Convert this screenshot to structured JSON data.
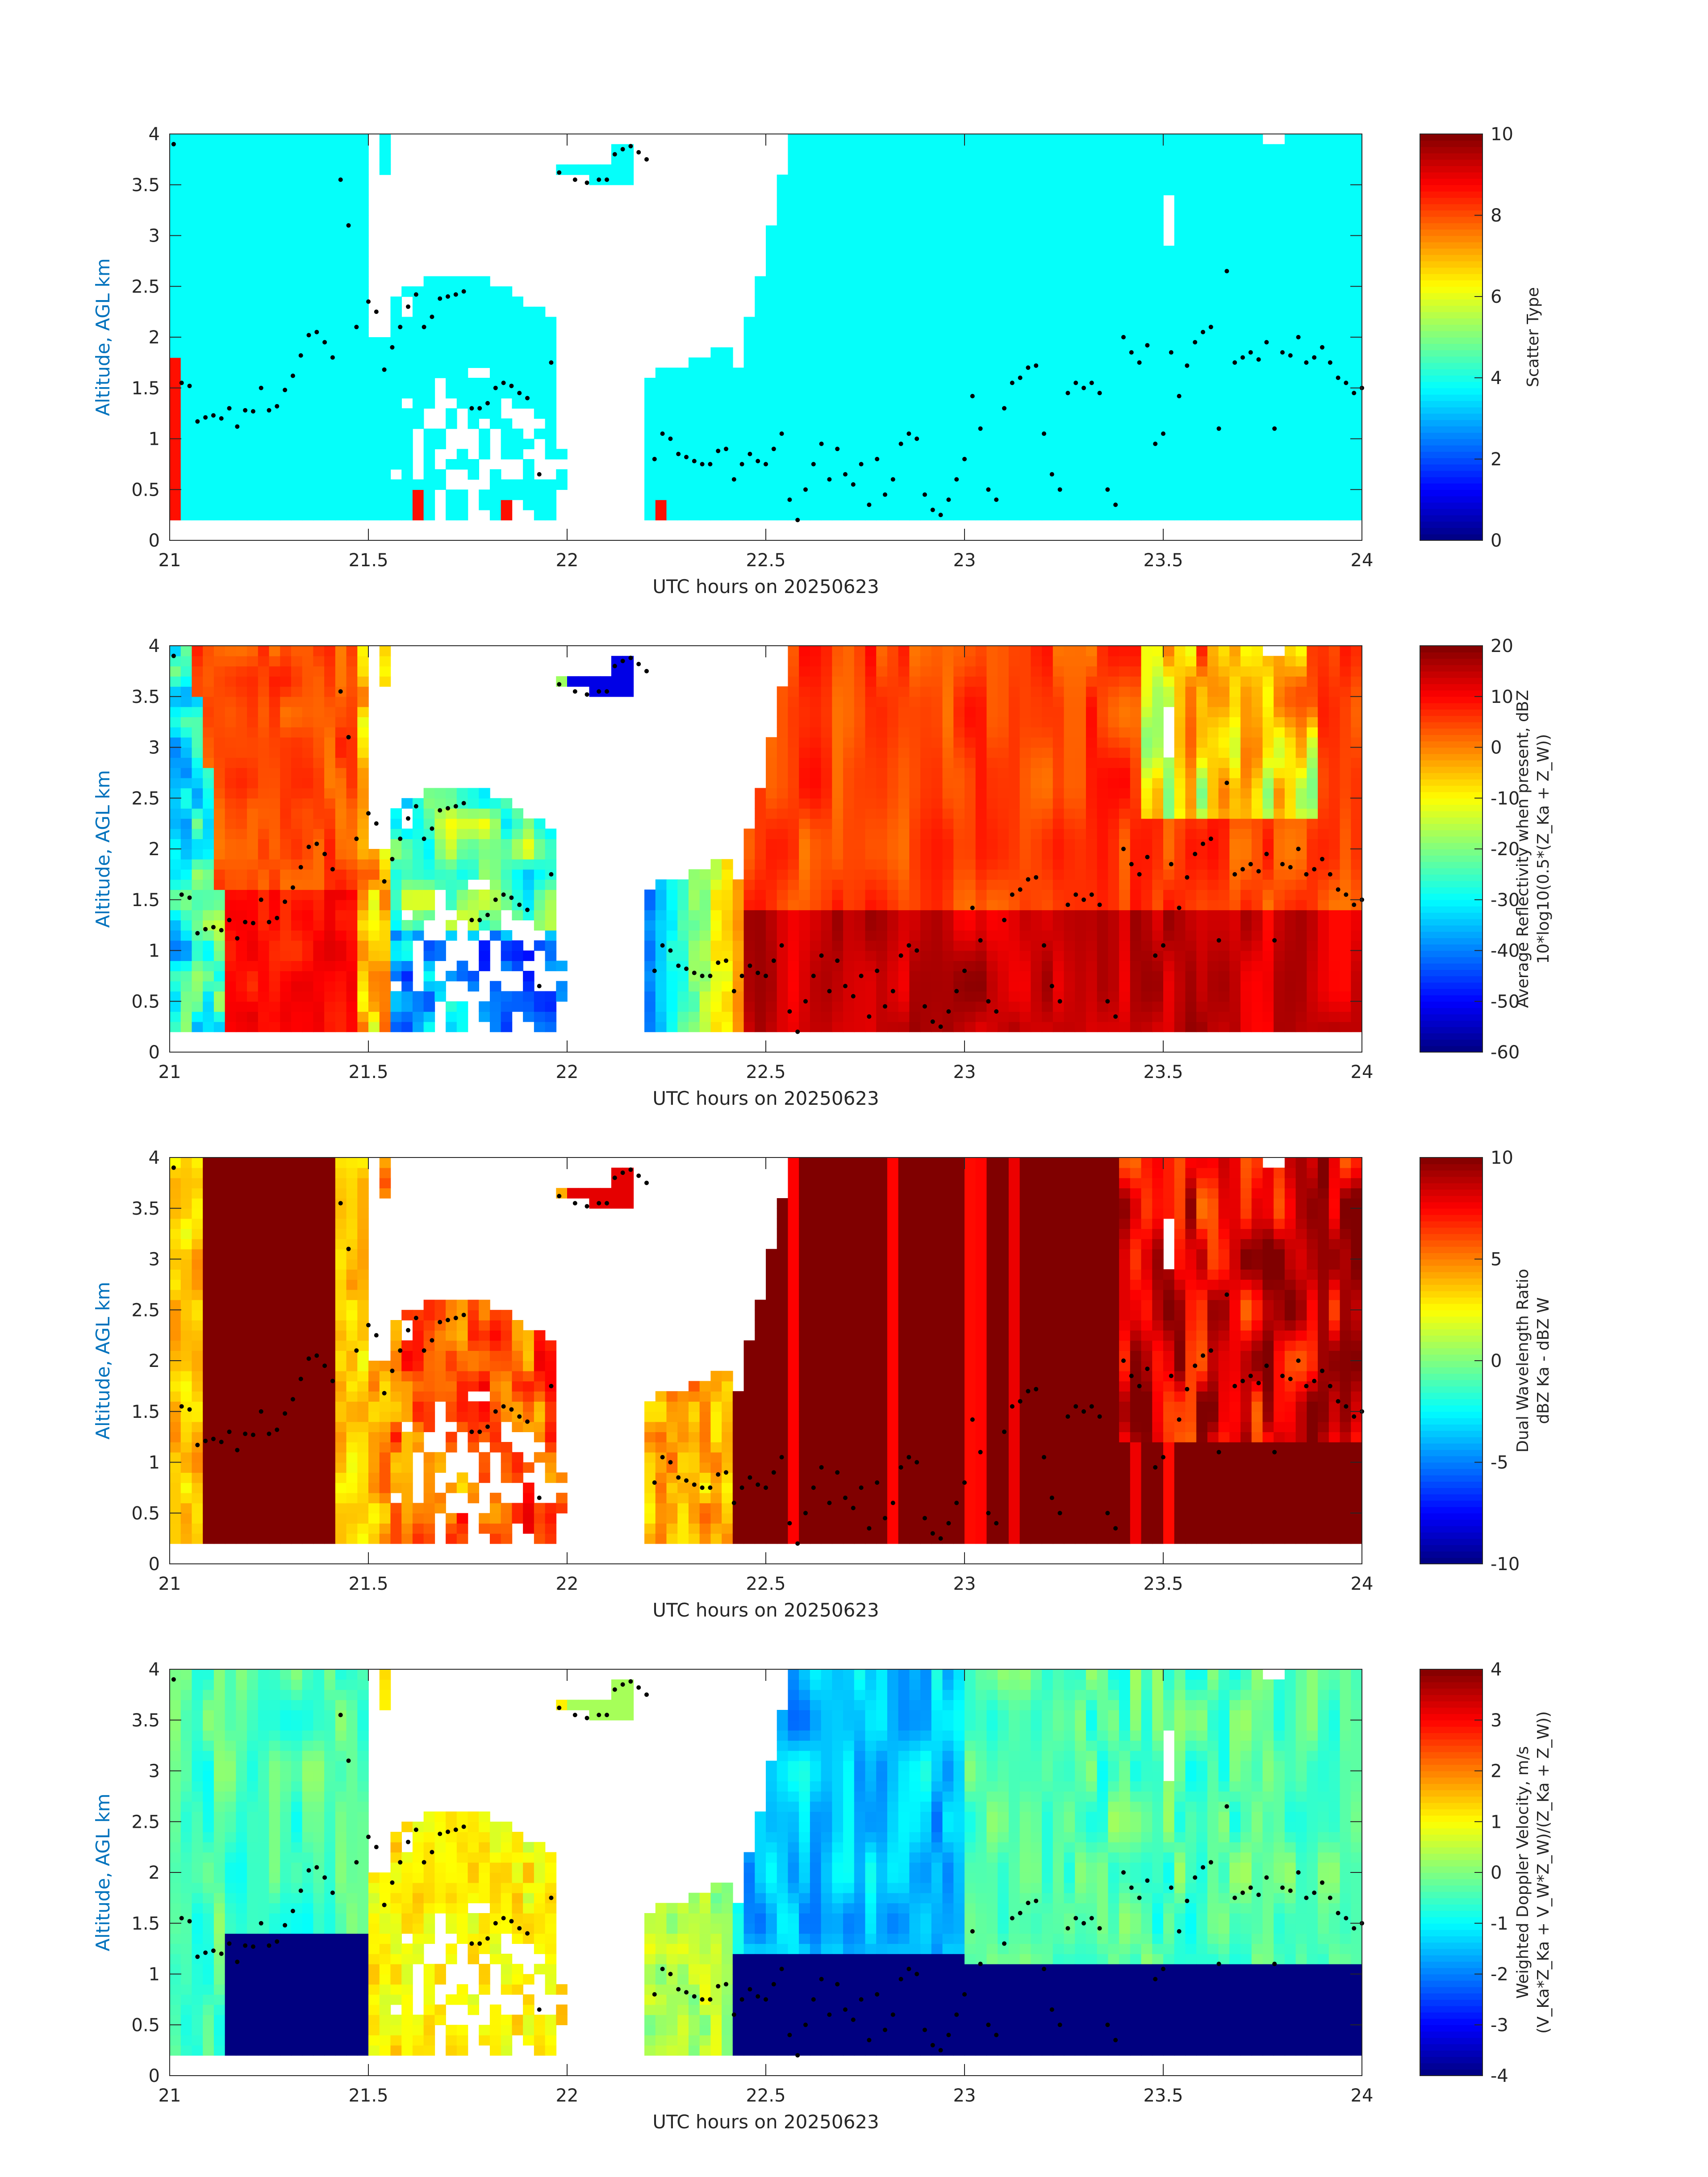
{
  "chart_data": [
    {
      "type": "heatmap",
      "panel": 1,
      "xlabel": "UTC hours on 20250623",
      "ylabel": "Altitude, AGL km",
      "xlim": [
        21,
        24
      ],
      "ylim": [
        0,
        4
      ],
      "xticks": [
        "21",
        "21.5",
        "22",
        "22.5",
        "23",
        "23.5",
        "24"
      ],
      "yticks": [
        "0",
        "0.5",
        "1",
        "1.5",
        "2",
        "2.5",
        "3",
        "3.5",
        "4"
      ],
      "colorbar": {
        "label_lines": [
          "Scatter Type"
        ],
        "range": [
          0,
          10
        ],
        "ticks": [
          "0",
          "2",
          "4",
          "6",
          "8",
          "10"
        ]
      },
      "field": "scatter-type",
      "values_note_dominant": 3.8,
      "values_note_secondary": 8.6
    },
    {
      "type": "heatmap",
      "panel": 2,
      "xlabel": "UTC hours on 20250623",
      "ylabel": "Altitude, AGL km",
      "xlim": [
        21,
        24
      ],
      "ylim": [
        0,
        4
      ],
      "xticks": [
        "21",
        "21.5",
        "22",
        "22.5",
        "23",
        "23.5",
        "24"
      ],
      "yticks": [
        "0",
        "0.5",
        "1",
        "1.5",
        "2",
        "2.5",
        "3",
        "3.5",
        "4"
      ],
      "colorbar": {
        "label_lines": [
          "Average Reflectivity when present, dBZ",
          "10*log10(0.5*(Z_Ka + Z_W))"
        ],
        "range": [
          -60,
          20
        ],
        "ticks": [
          "-60",
          "-50",
          "-40",
          "-30",
          "-20",
          "-10",
          "0",
          "10",
          "20"
        ]
      },
      "field": "reflectivity"
    },
    {
      "type": "heatmap",
      "panel": 3,
      "xlabel": "UTC hours on 20250623",
      "ylabel": "Altitude, AGL km",
      "xlim": [
        21,
        24
      ],
      "ylim": [
        0,
        4
      ],
      "xticks": [
        "21",
        "21.5",
        "22",
        "22.5",
        "23",
        "23.5",
        "24"
      ],
      "yticks": [
        "0",
        "0.5",
        "1",
        "1.5",
        "2",
        "2.5",
        "3",
        "3.5",
        "4"
      ],
      "colorbar": {
        "label_lines": [
          "Dual Wavelength Ratio",
          "dBZ Ka - dBZ W"
        ],
        "range": [
          -10,
          10
        ],
        "ticks": [
          "-10",
          "-5",
          "0",
          "5",
          "10"
        ]
      },
      "field": "dwr"
    },
    {
      "type": "heatmap",
      "panel": 4,
      "xlabel": "UTC hours on 20250623",
      "ylabel": "Altitude, AGL km",
      "xlim": [
        21,
        24
      ],
      "ylim": [
        0,
        4
      ],
      "xticks": [
        "21",
        "21.5",
        "22",
        "22.5",
        "23",
        "23.5",
        "24"
      ],
      "yticks": [
        "0",
        "0.5",
        "1",
        "1.5",
        "2",
        "2.5",
        "3",
        "3.5",
        "4"
      ],
      "colorbar": {
        "label_lines": [
          "Weighted Doppler Velocity, m/s",
          "(V_Ka*Z_Ka + V_W*Z_W)/(Z_Ka + Z_W))"
        ],
        "range": [
          -4,
          4
        ],
        "ticks": [
          "-4",
          "-3",
          "-2",
          "-1",
          "0",
          "1",
          "2",
          "3",
          "4"
        ]
      },
      "field": "velocity"
    }
  ],
  "cloud_base_points": [
    [
      21.01,
      3.9
    ],
    [
      21.03,
      1.55
    ],
    [
      21.05,
      1.52
    ],
    [
      21.07,
      1.17
    ],
    [
      21.09,
      1.21
    ],
    [
      21.11,
      1.23
    ],
    [
      21.13,
      1.2
    ],
    [
      21.15,
      1.3
    ],
    [
      21.17,
      1.12
    ],
    [
      21.19,
      1.28
    ],
    [
      21.21,
      1.27
    ],
    [
      21.23,
      1.5
    ],
    [
      21.25,
      1.28
    ],
    [
      21.27,
      1.32
    ],
    [
      21.29,
      1.48
    ],
    [
      21.31,
      1.62
    ],
    [
      21.33,
      1.82
    ],
    [
      21.35,
      2.02
    ],
    [
      21.37,
      2.05
    ],
    [
      21.39,
      1.95
    ],
    [
      21.41,
      1.8
    ],
    [
      21.43,
      3.55
    ],
    [
      21.45,
      3.1
    ],
    [
      21.47,
      2.1
    ],
    [
      21.5,
      2.35
    ],
    [
      21.52,
      2.25
    ],
    [
      21.54,
      1.68
    ],
    [
      21.56,
      1.9
    ],
    [
      21.58,
      2.1
    ],
    [
      21.6,
      2.3
    ],
    [
      21.62,
      2.42
    ],
    [
      21.64,
      2.1
    ],
    [
      21.66,
      2.2
    ],
    [
      21.68,
      2.38
    ],
    [
      21.7,
      2.4
    ],
    [
      21.72,
      2.42
    ],
    [
      21.74,
      2.45
    ],
    [
      21.76,
      1.3
    ],
    [
      21.78,
      1.3
    ],
    [
      21.8,
      1.35
    ],
    [
      21.82,
      1.5
    ],
    [
      21.84,
      1.55
    ],
    [
      21.86,
      1.52
    ],
    [
      21.88,
      1.45
    ],
    [
      21.9,
      1.4
    ],
    [
      21.93,
      0.65
    ],
    [
      21.96,
      1.75
    ],
    [
      21.98,
      3.62
    ],
    [
      22.02,
      3.55
    ],
    [
      22.05,
      3.52
    ],
    [
      22.08,
      3.55
    ],
    [
      22.1,
      3.55
    ],
    [
      22.12,
      3.8
    ],
    [
      22.14,
      3.85
    ],
    [
      22.16,
      3.88
    ],
    [
      22.18,
      3.82
    ],
    [
      22.2,
      3.75
    ],
    [
      22.22,
      0.8
    ],
    [
      22.24,
      1.05
    ],
    [
      22.26,
      1.0
    ],
    [
      22.28,
      0.85
    ],
    [
      22.3,
      0.82
    ],
    [
      22.32,
      0.78
    ],
    [
      22.34,
      0.75
    ],
    [
      22.36,
      0.75
    ],
    [
      22.38,
      0.88
    ],
    [
      22.4,
      0.9
    ],
    [
      22.42,
      0.6
    ],
    [
      22.44,
      0.75
    ],
    [
      22.46,
      0.85
    ],
    [
      22.48,
      0.78
    ],
    [
      22.5,
      0.75
    ],
    [
      22.52,
      0.9
    ],
    [
      22.54,
      1.05
    ],
    [
      22.56,
      0.4
    ],
    [
      22.58,
      0.2
    ],
    [
      22.6,
      0.5
    ],
    [
      22.62,
      0.75
    ],
    [
      22.64,
      0.95
    ],
    [
      22.66,
      0.6
    ],
    [
      22.68,
      0.9
    ],
    [
      22.7,
      0.65
    ],
    [
      22.72,
      0.55
    ],
    [
      22.74,
      0.75
    ],
    [
      22.76,
      0.35
    ],
    [
      22.78,
      0.8
    ],
    [
      22.8,
      0.45
    ],
    [
      22.82,
      0.6
    ],
    [
      22.84,
      0.95
    ],
    [
      22.86,
      1.05
    ],
    [
      22.88,
      1.0
    ],
    [
      22.9,
      0.45
    ],
    [
      22.92,
      0.3
    ],
    [
      22.94,
      0.25
    ],
    [
      22.96,
      0.4
    ],
    [
      22.98,
      0.6
    ],
    [
      23.0,
      0.8
    ],
    [
      23.02,
      1.42
    ],
    [
      23.04,
      1.1
    ],
    [
      23.06,
      0.5
    ],
    [
      23.08,
      0.4
    ],
    [
      23.1,
      1.3
    ],
    [
      23.12,
      1.55
    ],
    [
      23.14,
      1.6
    ],
    [
      23.16,
      1.7
    ],
    [
      23.18,
      1.72
    ],
    [
      23.2,
      1.05
    ],
    [
      23.22,
      0.65
    ],
    [
      23.24,
      0.5
    ],
    [
      23.26,
      1.45
    ],
    [
      23.28,
      1.55
    ],
    [
      23.3,
      1.5
    ],
    [
      23.32,
      1.55
    ],
    [
      23.34,
      1.45
    ],
    [
      23.36,
      0.5
    ],
    [
      23.38,
      0.35
    ],
    [
      23.4,
      2.0
    ],
    [
      23.42,
      1.85
    ],
    [
      23.44,
      1.75
    ],
    [
      23.46,
      1.92
    ],
    [
      23.48,
      0.95
    ],
    [
      23.5,
      1.05
    ],
    [
      23.52,
      1.85
    ],
    [
      23.54,
      1.42
    ],
    [
      23.56,
      1.72
    ],
    [
      23.58,
      1.95
    ],
    [
      23.6,
      2.05
    ],
    [
      23.62,
      2.1
    ],
    [
      23.64,
      1.1
    ],
    [
      23.66,
      2.65
    ],
    [
      23.68,
      1.75
    ],
    [
      23.7,
      1.8
    ],
    [
      23.72,
      1.85
    ],
    [
      23.74,
      1.78
    ],
    [
      23.76,
      1.95
    ],
    [
      23.78,
      1.1
    ],
    [
      23.8,
      1.85
    ],
    [
      23.82,
      1.82
    ],
    [
      23.84,
      2.0
    ],
    [
      23.86,
      1.75
    ],
    [
      23.88,
      1.8
    ],
    [
      23.9,
      1.9
    ],
    [
      23.92,
      1.75
    ],
    [
      23.94,
      1.6
    ],
    [
      23.96,
      1.55
    ],
    [
      23.98,
      1.45
    ],
    [
      24.0,
      1.5
    ]
  ]
}
